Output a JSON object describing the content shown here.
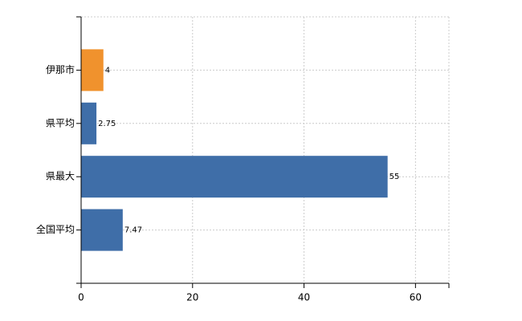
{
  "chart_data": {
    "type": "hbar",
    "categories": [
      "伊那市",
      "県平均",
      "県最大",
      "全国平均"
    ],
    "values": [
      4,
      2.75,
      55,
      7.47
    ],
    "colors": [
      "#f0922d",
      "#3f6ea8",
      "#3f6ea8",
      "#3f6ea8"
    ],
    "xlim": [
      0,
      66
    ],
    "xticks": [
      0,
      20,
      40,
      60
    ],
    "grid": true
  }
}
